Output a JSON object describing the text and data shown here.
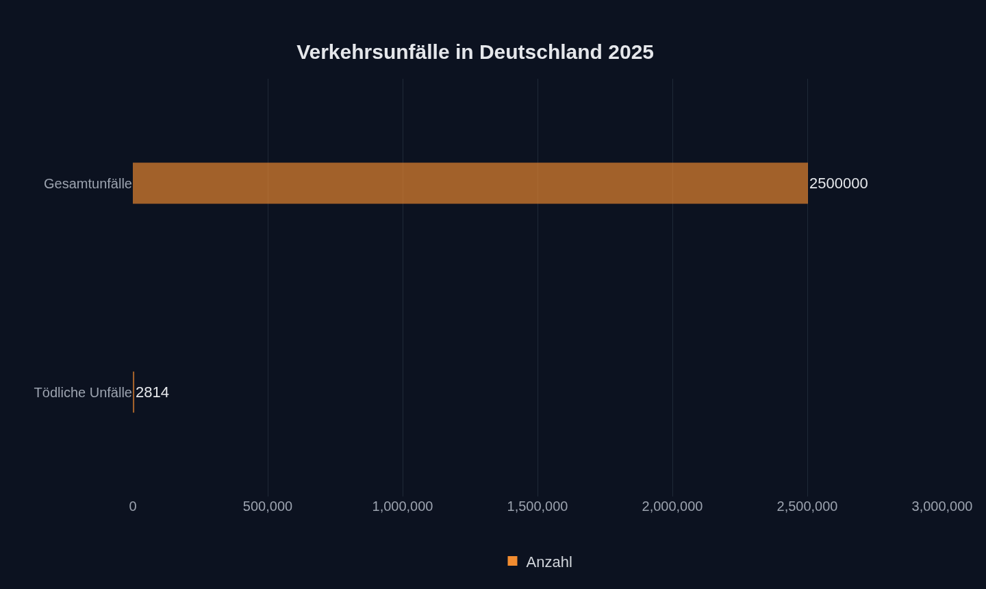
{
  "chart_data": {
    "type": "bar",
    "orientation": "horizontal",
    "title": "Verkehrsunfälle in Deutschland 2025",
    "categories": [
      "Gesamtunfälle",
      "Tödliche Unfälle"
    ],
    "series": [
      {
        "name": "Anzahl",
        "color": "#f28c30",
        "values": [
          2500000,
          2814
        ]
      }
    ],
    "xlim": [
      0,
      3000000
    ],
    "xticks": [
      0,
      {
        "value": 500000,
        "label": "500,000"
      },
      {
        "value": 1000000,
        "label": "1,000,000"
      },
      {
        "value": 1500000,
        "label": "1,500,000"
      },
      {
        "value": 2000000,
        "label": "2,000,000"
      },
      {
        "value": 2500000,
        "label": "2,500,000"
      },
      {
        "value": 3000000,
        "label": "3,000,000"
      }
    ],
    "grid": "x",
    "legend": "bottom",
    "data_labels": true
  }
}
